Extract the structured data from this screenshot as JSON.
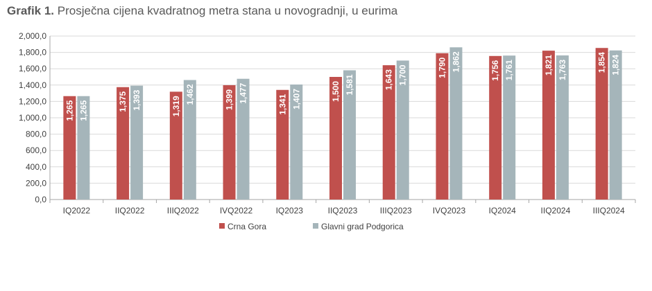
{
  "title": {
    "lead": "Grafik 1.",
    "text": "Prosječna cijena kvadratnog metra stana u novogradnji, u eurima"
  },
  "chart_data": {
    "type": "bar",
    "categories": [
      "IQ2022",
      "IIQ2022",
      "IIIQ2022",
      "IVQ2022",
      "IQ2023",
      "IIQ2023",
      "IIIQ2023",
      "IVQ2023",
      "IQ2024",
      "IIQ2024",
      "IIIQ2024"
    ],
    "series": [
      {
        "name": "Crna Gora",
        "color": "#c0504d",
        "values": [
          1265,
          1375,
          1319,
          1399,
          1341,
          1500,
          1643,
          1790,
          1756,
          1821,
          1854
        ],
        "labels": [
          "1,265",
          "1,375",
          "1,319",
          "1,399",
          "1,341",
          "1,500",
          "1,643",
          "1,790",
          "1,756",
          "1,821",
          "1,854"
        ]
      },
      {
        "name": "Glavni grad Podgorica",
        "color": "#a5b5ba",
        "values": [
          1265,
          1393,
          1462,
          1477,
          1407,
          1581,
          1700,
          1862,
          1761,
          1763,
          1824
        ],
        "labels": [
          "1,265",
          "1,393",
          "1,462",
          "1,477",
          "1,407",
          "1,581",
          "1,700",
          "1,862",
          "1,761",
          "1,763",
          "1,824"
        ]
      }
    ],
    "ylim": [
      0,
      2000
    ],
    "yticks": [
      0,
      200,
      400,
      600,
      800,
      1000,
      1200,
      1400,
      1600,
      1800,
      2000
    ],
    "ytick_labels": [
      "0,0",
      "200,0",
      "400,0",
      "600,0",
      "800,0",
      "1,000,0",
      "1,200,0",
      "1,400,0",
      "1,600,0",
      "1,800,0",
      "2,000,0"
    ],
    "grid": true,
    "legend_position": "bottom-left"
  }
}
